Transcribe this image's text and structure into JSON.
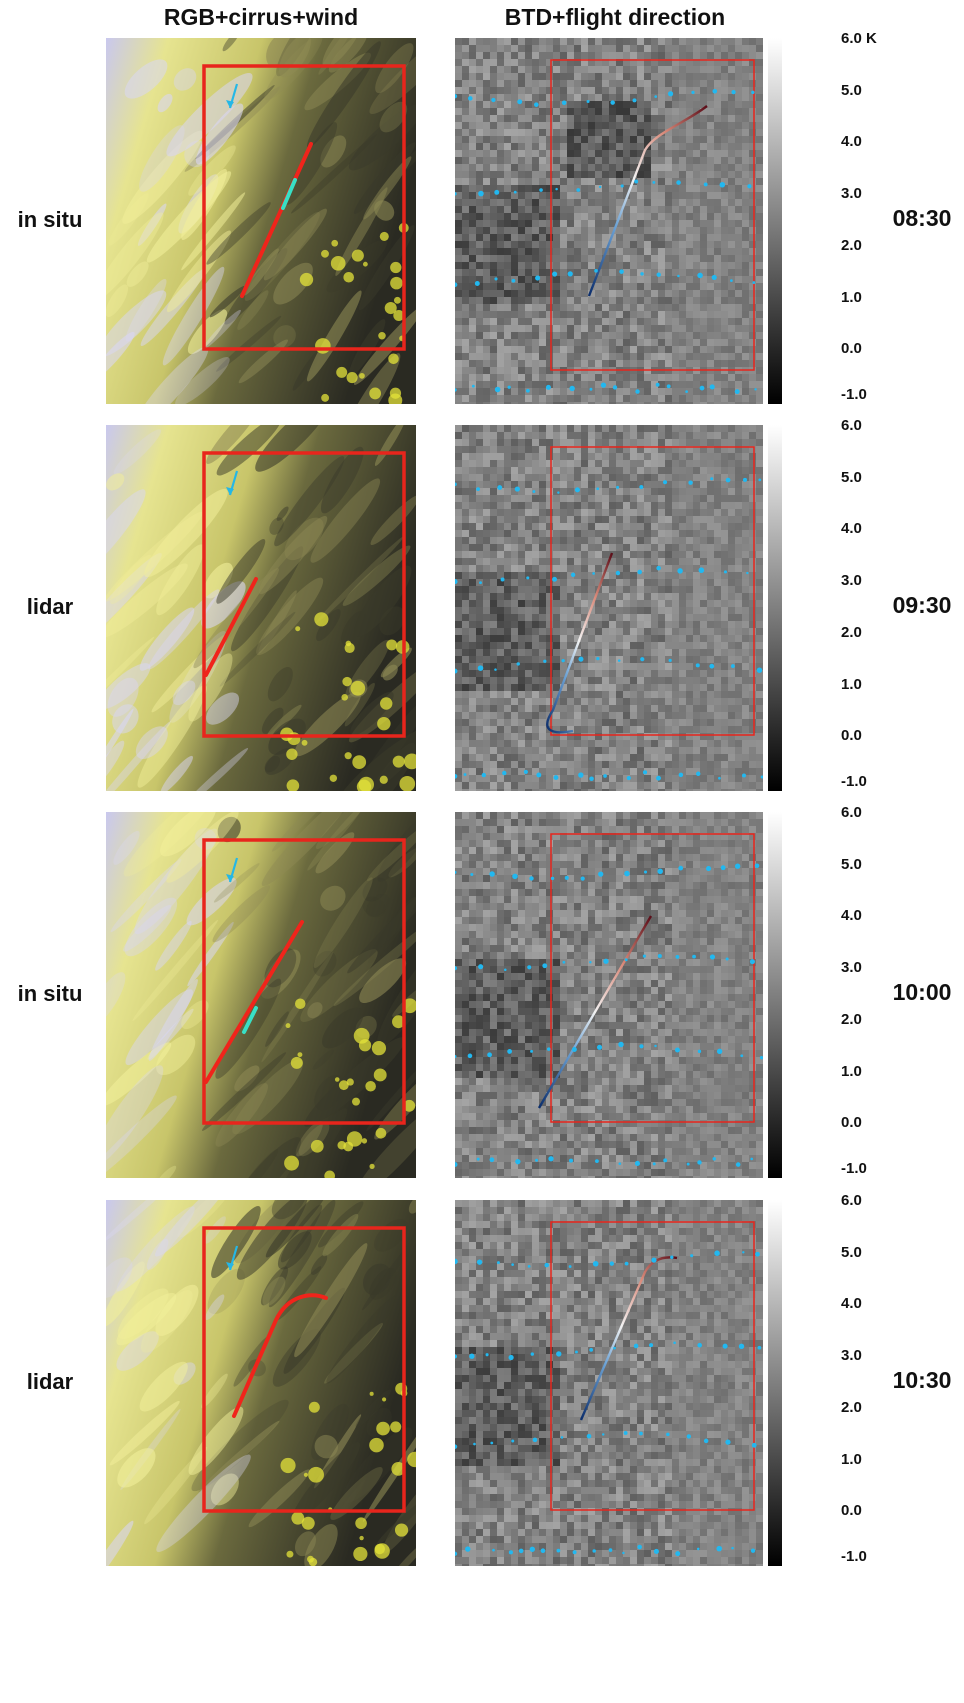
{
  "headers": {
    "left": "RGB+cirrus+wind",
    "right": "BTD+flight direction"
  },
  "rows": [
    {
      "mode": "in situ",
      "time": "08:30"
    },
    {
      "mode": "lidar",
      "time": "09:30"
    },
    {
      "mode": "in situ",
      "time": "10:00"
    },
    {
      "mode": "lidar",
      "time": "10:30"
    }
  ],
  "colorbar": {
    "ticks_first": [
      "6.0 K",
      "5.0",
      "4.0",
      "3.0",
      "2.0",
      "1.0",
      "0.0",
      "-1.0"
    ],
    "ticks": [
      "6.0",
      "5.0",
      "4.0",
      "3.0",
      "2.0",
      "1.0",
      "0.0",
      "-1.0"
    ]
  },
  "colors": {
    "box": "#e8251c",
    "track": "#f0241b",
    "cirrus_segment": "#38e0c6",
    "wind_arrow": "#25b7e6",
    "contrail_dots": "#22b8f0"
  }
}
